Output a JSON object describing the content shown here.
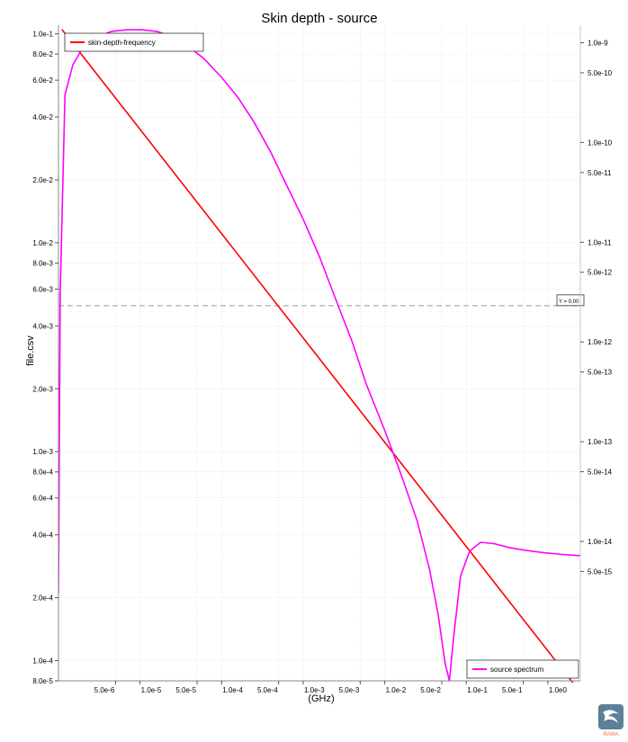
{
  "chart_data": {
    "type": "line",
    "title": "Skin depth - source",
    "xlabel": "(GHz)",
    "ylabel": "file.csv",
    "xscale": "log",
    "xlim": [
      1e-06,
      2.5
    ],
    "y_left": {
      "scale": "log",
      "ylim": [
        8e-05,
        0.11
      ],
      "ticks": [
        0.1,
        0.08,
        0.06,
        0.04,
        0.02,
        0.01,
        0.008,
        0.006,
        0.004,
        0.002,
        0.001,
        0.0008,
        0.0006,
        0.0004,
        0.0002,
        0.0001,
        8e-05
      ],
      "tick_labels": [
        "1.0e-1",
        "8.0e-2",
        "6.0e-2",
        "4.0e-2",
        "2.0e-2",
        "1.0e-2",
        "8.0e-3",
        "6.0e-3",
        "4.0e-3",
        "2.0e-3",
        "1.0e-3",
        "8.0e-4",
        "6.0e-4",
        "4.0e-4",
        "2.0e-4",
        "1.0e-4",
        "8.0e-5"
      ]
    },
    "y_right": {
      "scale": "log",
      "ylim": [
        4e-16,
        1.5e-09
      ],
      "ticks": [
        1e-09,
        5e-10,
        1e-10,
        5e-11,
        1e-11,
        5e-12,
        1e-12,
        5e-13,
        1e-13,
        5e-14,
        1e-14,
        5e-15
      ],
      "tick_labels": [
        "1.0e-9",
        "5.0e-10",
        "1.0e-10",
        "5.0e-11",
        "1.0e-11",
        "5.0e-12",
        "1.0e-12",
        "5.0e-13",
        "1.0e-13",
        "5.0e-14",
        "1.0e-14",
        "5.0e-15"
      ]
    },
    "x_ticks": [
      5e-06,
      1e-05,
      5e-05,
      0.0001,
      0.0005,
      0.001,
      0.005,
      0.01,
      0.05,
      0.1,
      0.5,
      1
    ],
    "x_tick_labels": [
      "5.0e-6",
      "1.0e-5",
      "5.0e-5",
      "1.0e-4",
      "5.0e-4",
      "1.0e-3",
      "5.0e-3",
      "1.0e-2",
      "5.0e-2",
      "1.0e-1",
      "5.0e-1",
      "1.0e0"
    ],
    "grid": true,
    "series": [
      {
        "name": "skin-depth-frequency",
        "axis": "left",
        "color": "#ff0000",
        "x": [
          1.1e-06,
          2.5
        ],
        "y": [
          0.105,
          7.05e-05
        ]
      },
      {
        "name": "source spectrum",
        "axis": "right",
        "color": "#ff00ff",
        "x": [
          1e-06,
          1.05e-06,
          1.2e-06,
          1.5e-06,
          2e-06,
          3e-06,
          4.5e-06,
          7e-06,
          1.05e-05,
          1.6e-05,
          2.5e-05,
          4e-05,
          6e-05,
          0.0001,
          0.00016,
          0.00025,
          0.0004,
          0.0006,
          0.001,
          0.0016,
          0.0025,
          0.004,
          0.006,
          0.01,
          0.016,
          0.025,
          0.035,
          0.045,
          0.055,
          0.062,
          0.07,
          0.085,
          0.11,
          0.15,
          0.22,
          0.35,
          0.55,
          0.9,
          1.5,
          2.5
        ],
        "y": [
          3e-15,
          3e-12,
          3e-10,
          6e-10,
          9e-10,
          1.15e-09,
          1.3e-09,
          1.35e-09,
          1.35e-09,
          1.3e-09,
          1.15e-09,
          9e-10,
          7e-10,
          4.5e-10,
          2.8e-10,
          1.6e-10,
          8e-11,
          4e-11,
          1.7e-11,
          7e-12,
          2.7e-12,
          1e-12,
          3.7e-13,
          1.3e-13,
          4.6e-14,
          1.6e-14,
          5.5e-15,
          1.9e-15,
          6e-16,
          4e-16,
          1.1e-15,
          4.5e-15,
          8e-15,
          9.8e-15,
          9.5e-15,
          8.6e-15,
          8.1e-15,
          7.7e-15,
          7.4e-15,
          7.2e-15
        ]
      }
    ],
    "reference_line": {
      "y": 0.005,
      "axis": "left",
      "label": "Y = 0.00",
      "style": "dashed",
      "color": "#999999"
    },
    "legends": [
      {
        "series": "skin-depth-frequency",
        "placement": "top-left"
      },
      {
        "series": "source spectrum",
        "placement": "bottom-right"
      }
    ]
  },
  "logo": {
    "name": "app-logo",
    "text": "RAWA"
  }
}
